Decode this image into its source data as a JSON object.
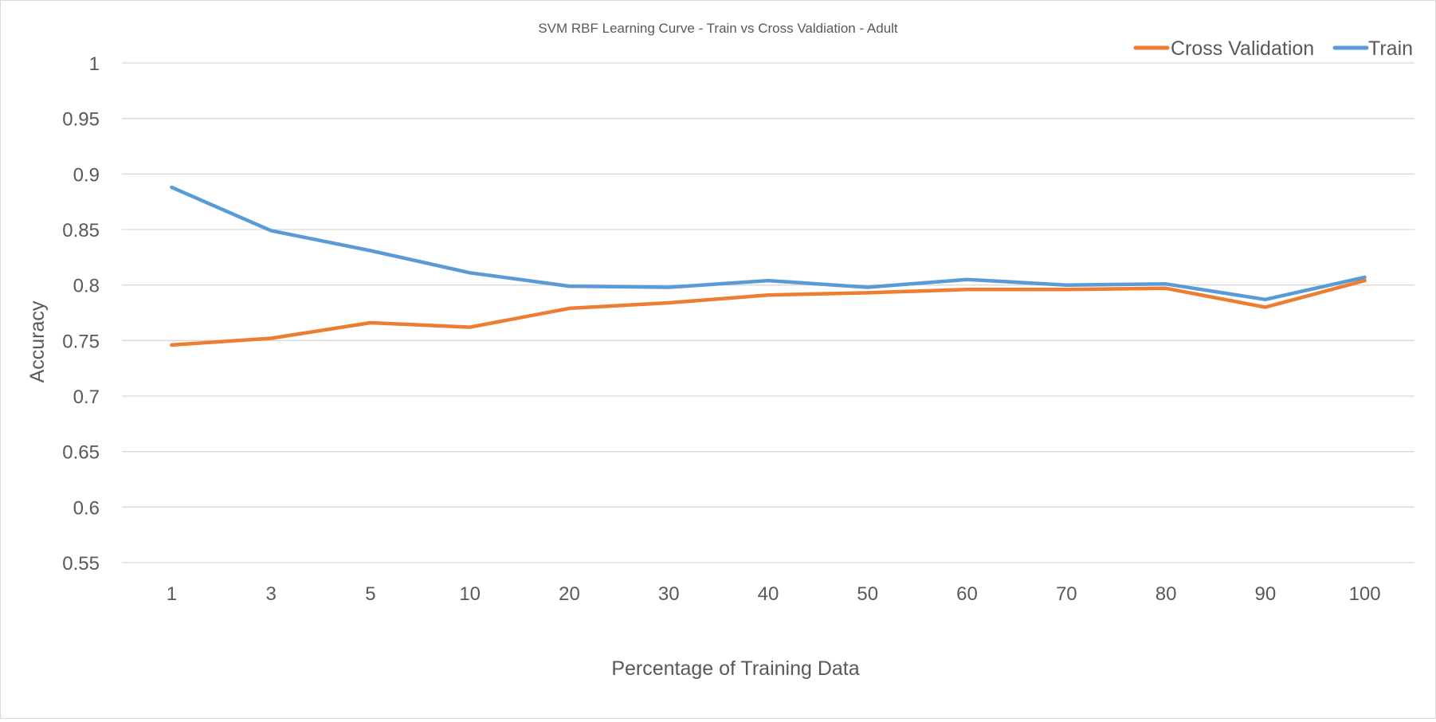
{
  "chart_data": {
    "type": "line",
    "title": "SVM RBF Learning Curve - Train vs Cross Valdiation - Adult",
    "xlabel": "Percentage of Training Data",
    "ylabel": "Accuracy",
    "categories": [
      "1",
      "3",
      "5",
      "10",
      "20",
      "30",
      "40",
      "50",
      "60",
      "70",
      "80",
      "90",
      "100"
    ],
    "ylim": [
      0.55,
      1
    ],
    "yticks": [
      "0.55",
      "0.6",
      "0.65",
      "0.7",
      "0.75",
      "0.8",
      "0.85",
      "0.9",
      "0.95",
      "1"
    ],
    "grid": true,
    "legend": {
      "position": "top-right",
      "entries": [
        "Cross Validation",
        "Train"
      ]
    },
    "series": [
      {
        "name": "Cross Validation",
        "color": "#ed7d31",
        "values": [
          0.746,
          0.752,
          0.766,
          0.762,
          0.779,
          0.784,
          0.791,
          0.793,
          0.796,
          0.796,
          0.797,
          0.78,
          0.804
        ]
      },
      {
        "name": "Train",
        "color": "#5b9bd5",
        "values": [
          0.888,
          0.849,
          0.831,
          0.811,
          0.799,
          0.798,
          0.804,
          0.798,
          0.805,
          0.8,
          0.801,
          0.787,
          0.807
        ]
      }
    ]
  }
}
